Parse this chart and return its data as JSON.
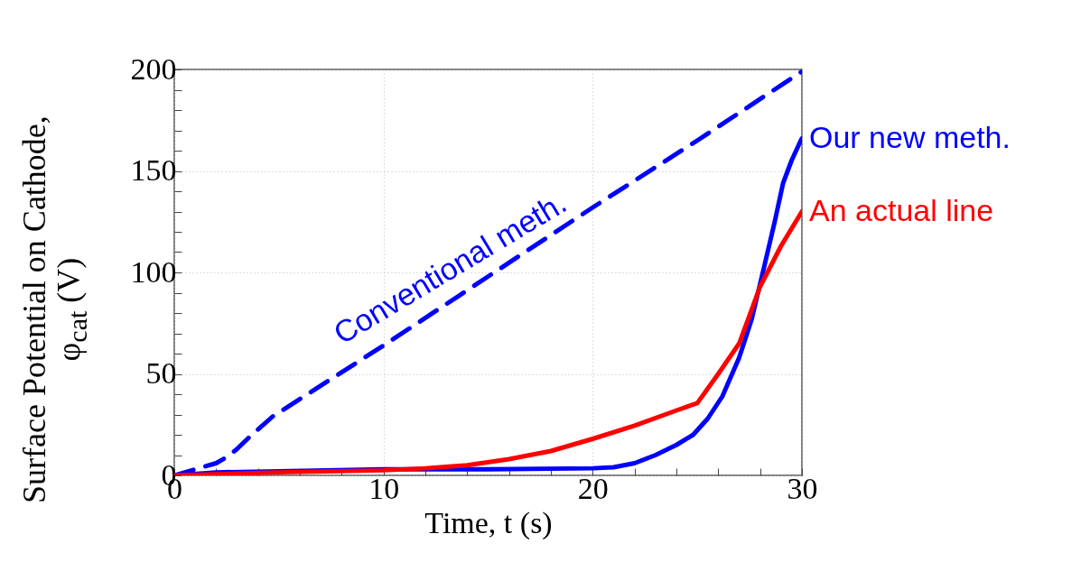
{
  "chart_data": {
    "type": "line",
    "xlabel": "Time, t (s)",
    "ylabel": "Surface Potential on Cathode, φ$_{cat}$ (V)",
    "xlim": [
      0,
      30
    ],
    "xticks": [
      0,
      {
        "value": 2,
        "label": null
      },
      {
        "value": 4,
        "label": null
      },
      {
        "value": 6,
        "label": null
      },
      {
        "value": 8,
        "label": null
      },
      10,
      {
        "value": 12,
        "label": null
      },
      {
        "value": 14,
        "label": null
      },
      {
        "value": 16,
        "label": null
      },
      {
        "value": 18,
        "label": null
      },
      20,
      {
        "value": 22,
        "label": null
      },
      {
        "value": 24,
        "label": null
      },
      {
        "value": 26,
        "label": null
      },
      {
        "value": 28,
        "label": null
      },
      30
    ],
    "ylim": [
      0,
      200
    ],
    "yticks": [
      0,
      {
        "value": 10,
        "label": null
      },
      {
        "value": 20,
        "label": null
      },
      {
        "value": 30,
        "label": null
      },
      {
        "value": 40,
        "label": null
      },
      50,
      {
        "value": 60,
        "label": null
      },
      {
        "value": 70,
        "label": null
      },
      {
        "value": 80,
        "label": null
      },
      {
        "value": 90,
        "label": null
      },
      100,
      {
        "value": 110,
        "label": null
      },
      {
        "value": 120,
        "label": null
      },
      {
        "value": 130,
        "label": null
      },
      {
        "value": 140,
        "label": null
      },
      150,
      {
        "value": 160,
        "label": null
      },
      {
        "value": 170,
        "label": null
      },
      {
        "value": 180,
        "label": null
      },
      {
        "value": 190,
        "label": null
      },
      200
    ],
    "grid": true,
    "series": [
      {
        "name": "Conventional meth.",
        "color": "#0000ff",
        "line_style": "dashed",
        "x": [
          0,
          1,
          2,
          2.5,
          3,
          3.5,
          4.7,
          10,
          15,
          20,
          25,
          30
        ],
        "values": [
          0,
          3,
          6,
          9,
          13,
          18,
          29,
          64,
          98,
          132,
          165,
          199
        ]
      },
      {
        "name": "Our new meth.",
        "color": "#0000ff",
        "line_style": "solid",
        "x": [
          0,
          2,
          5,
          10,
          15,
          20,
          21,
          22,
          23,
          24,
          24.8,
          25.5,
          26.2,
          27,
          27.6,
          28.2,
          28.7,
          29.1,
          29.5,
          29.9,
          30
        ],
        "values": [
          0,
          1.5,
          2,
          3,
          3,
          3.5,
          4,
          6,
          10,
          15,
          20,
          28,
          39,
          58,
          77,
          103,
          125,
          144,
          155,
          164,
          166
        ]
      },
      {
        "name": "An actual line",
        "color": "#ff0000",
        "line_style": "solid",
        "x": [
          0,
          5,
          10,
          12,
          14,
          16,
          18,
          20,
          22,
          24,
          25,
          26,
          27,
          28,
          29,
          30
        ],
        "values": [
          0,
          1.5,
          2.5,
          3.5,
          5,
          8,
          12,
          18,
          24.5,
          32,
          35.6,
          50,
          65,
          93,
          113,
          130
        ]
      }
    ]
  }
}
